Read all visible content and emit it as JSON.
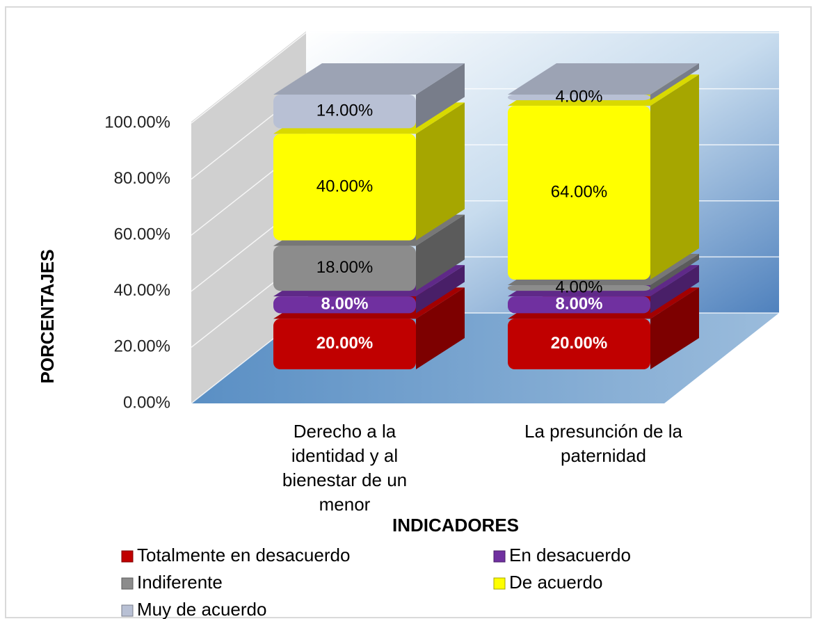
{
  "chart_data": {
    "type": "bar3d_stacked",
    "categories": [
      "Derecho a la identidad y al bienestar de un menor",
      "La presunción de la paternidad"
    ],
    "series": [
      {
        "name": "Totalmente en desacuerdo",
        "color": "#c00000",
        "label_color": "#ffffff",
        "label_bold": true,
        "values": [
          20,
          20
        ],
        "value_labels": [
          "20.00%",
          "20.00%"
        ]
      },
      {
        "name": "En desacuerdo",
        "color": "#7030a0",
        "label_color": "#ffffff",
        "label_bold": true,
        "values": [
          8,
          8
        ],
        "value_labels": [
          "8.00%",
          "8.00%"
        ]
      },
      {
        "name": "Indiferente",
        "color": "#8c8c8c",
        "label_color": "#000000",
        "label_bold": false,
        "values": [
          18,
          4
        ],
        "value_labels": [
          "18.00%",
          "4.00%"
        ]
      },
      {
        "name": "De acuerdo",
        "color": "#ffff00",
        "label_color": "#000000",
        "label_bold": false,
        "values": [
          40,
          64
        ],
        "value_labels": [
          "40.00%",
          "64.00%"
        ]
      },
      {
        "name": "Muy de acuerdo",
        "color": "#b8c0d4",
        "label_color": "#000000",
        "label_bold": false,
        "values": [
          14,
          4
        ],
        "value_labels": [
          "14.00%",
          "4.00%"
        ]
      }
    ],
    "ylim": [
      0,
      100
    ],
    "yticks": [
      {
        "value": 0,
        "label": "0.00%"
      },
      {
        "value": 20,
        "label": "20.00%"
      },
      {
        "value": 40,
        "label": "40.00%"
      },
      {
        "value": 60,
        "label": "60.00%"
      },
      {
        "value": 80,
        "label": "80.00%"
      },
      {
        "value": 100,
        "label": "100.00%"
      }
    ],
    "grid": true,
    "y_label": "PORCENTAJES",
    "x_label": "INDICADORES",
    "legend": "bottom"
  }
}
